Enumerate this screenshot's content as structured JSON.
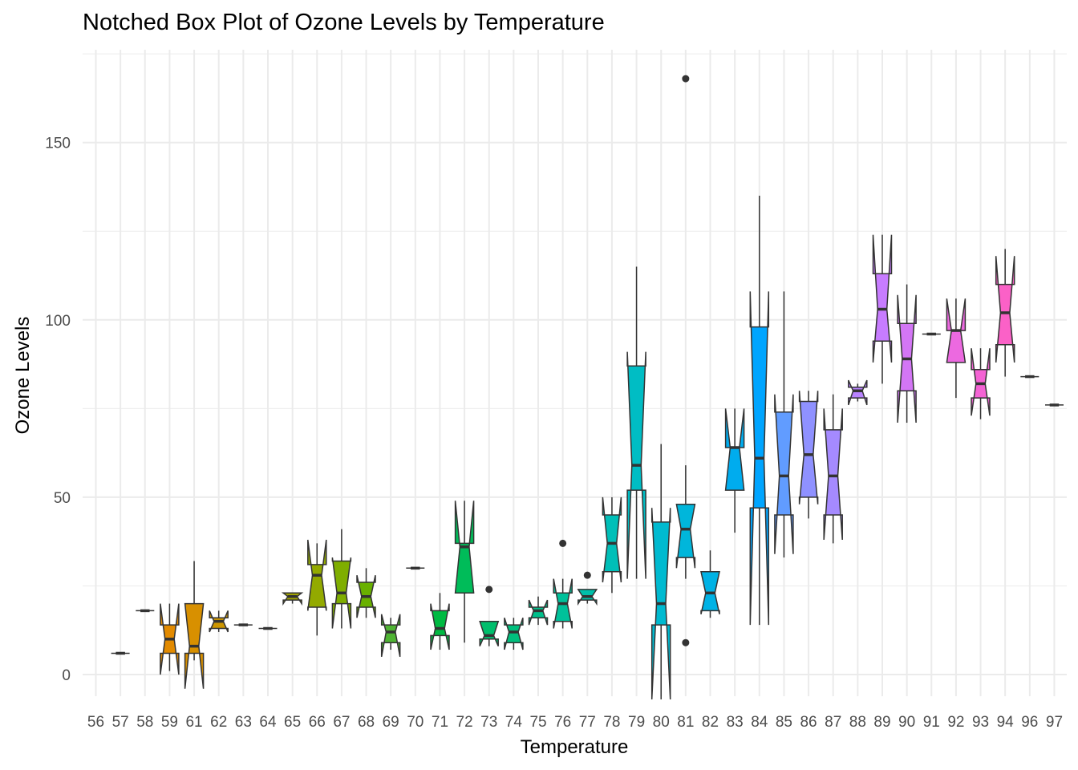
{
  "chart_data": {
    "type": "box",
    "title": "Notched Box Plot of Ozone Levels by Temperature",
    "xlabel": "Temperature",
    "ylabel": "Ozone Levels",
    "ylim": [
      -5,
      175
    ],
    "yticks": [
      0,
      50,
      100,
      150
    ],
    "grid": true,
    "legend": "none",
    "notched": true,
    "categories": [
      "56",
      "57",
      "58",
      "59",
      "61",
      "62",
      "63",
      "64",
      "65",
      "66",
      "67",
      "68",
      "69",
      "70",
      "71",
      "72",
      "73",
      "74",
      "75",
      "76",
      "77",
      "78",
      "79",
      "80",
      "81",
      "82",
      "83",
      "84",
      "85",
      "86",
      "87",
      "88",
      "89",
      "90",
      "91",
      "92",
      "93",
      "94",
      "96",
      "97"
    ],
    "colors": [
      "#F8766D",
      "#F27D53",
      "#EA842F",
      "#E28A00",
      "#D89000",
      "#CD9600",
      "#C09B00",
      "#B3A000",
      "#A3A500",
      "#93AA00",
      "#7FAE00",
      "#69B100",
      "#4FB433",
      "#00B81F",
      "#00BA42",
      "#00BC59",
      "#00BE6C",
      "#00BF7D",
      "#00C08B",
      "#00C19A",
      "#00C0AA",
      "#00BFB8",
      "#00BDC4",
      "#00BAD0",
      "#00B6DB",
      "#00B2E5",
      "#00ACEE",
      "#00A5FF",
      "#619CFF",
      "#8F91FF",
      "#A58AFF",
      "#B983FF",
      "#C77CFF",
      "#D376F5",
      "#E26EEA",
      "#EC69E0",
      "#F463D4",
      "#FB61C7",
      "#FF64B2",
      "#FF6A98"
    ],
    "boxes": [
      null,
      {
        "min": 6,
        "q1": 6,
        "median": 6,
        "q3": 6,
        "max": 6,
        "notch_low": 6,
        "notch_high": 6,
        "outliers": []
      },
      {
        "min": 18,
        "q1": 18,
        "median": 18,
        "q3": 18,
        "max": 18,
        "notch_low": 18,
        "notch_high": 18,
        "outliers": []
      },
      {
        "min": 1,
        "q1": 6,
        "median": 10,
        "q3": 14,
        "max": 20,
        "notch_low": 0,
        "notch_high": 20,
        "outliers": []
      },
      {
        "min": 4,
        "q1": 6,
        "median": 8,
        "q3": 20,
        "max": 32,
        "notch_low": -4,
        "notch_high": 20,
        "outliers": []
      },
      {
        "min": 12,
        "q1": 13,
        "median": 15,
        "q3": 16,
        "max": 18,
        "notch_low": 12,
        "notch_high": 18,
        "outliers": []
      },
      {
        "min": 14,
        "q1": 14,
        "median": 14,
        "q3": 14,
        "max": 14,
        "notch_low": 14,
        "notch_high": 14,
        "outliers": []
      },
      {
        "min": 13,
        "q1": 13,
        "median": 13,
        "q3": 13,
        "max": 13,
        "notch_low": 13,
        "notch_high": 13,
        "outliers": []
      },
      {
        "min": 20,
        "q1": 21,
        "median": 22,
        "q3": 23,
        "max": 23,
        "notch_low": 20,
        "notch_high": 23,
        "outliers": []
      },
      {
        "min": 11,
        "q1": 19,
        "median": 28,
        "q3": 31,
        "max": 37,
        "notch_low": 18,
        "notch_high": 38,
        "outliers": []
      },
      {
        "min": 13,
        "q1": 20,
        "median": 23,
        "q3": 32,
        "max": 41,
        "notch_low": 13,
        "notch_high": 33,
        "outliers": []
      },
      {
        "min": 16,
        "q1": 19,
        "median": 22,
        "q3": 26,
        "max": 30,
        "notch_low": 16,
        "notch_high": 28,
        "outliers": []
      },
      {
        "min": 7,
        "q1": 9,
        "median": 12,
        "q3": 14,
        "max": 16,
        "notch_low": 5,
        "notch_high": 17,
        "outliers": []
      },
      {
        "min": 30,
        "q1": 30,
        "median": 30,
        "q3": 30,
        "max": 30,
        "notch_low": 30,
        "notch_high": 30,
        "outliers": []
      },
      {
        "min": 7,
        "q1": 11,
        "median": 13,
        "q3": 18,
        "max": 23,
        "notch_low": 7,
        "notch_high": 20,
        "outliers": []
      },
      {
        "min": 9,
        "q1": 23,
        "median": 36,
        "q3": 37,
        "max": 49,
        "notch_low": 23,
        "notch_high": 49,
        "outliers": []
      },
      {
        "min": 8,
        "q1": 10,
        "median": 11,
        "q3": 15,
        "max": 15,
        "notch_low": 8,
        "notch_high": 15,
        "outliers": [
          24
        ]
      },
      {
        "min": 7,
        "q1": 9,
        "median": 12,
        "q3": 14,
        "max": 16,
        "notch_low": 7,
        "notch_high": 16,
        "outliers": []
      },
      {
        "min": 14,
        "q1": 16,
        "median": 18,
        "q3": 19,
        "max": 22,
        "notch_low": 14,
        "notch_high": 21,
        "outliers": []
      },
      {
        "min": 13,
        "q1": 15,
        "median": 20,
        "q3": 23,
        "max": 27,
        "notch_low": 13,
        "notch_high": 27,
        "outliers": [
          37
        ]
      },
      {
        "min": 20,
        "q1": 21,
        "median": 22,
        "q3": 24,
        "max": 24,
        "notch_low": 20,
        "notch_high": 24,
        "outliers": [
          28
        ]
      },
      {
        "min": 23,
        "q1": 29,
        "median": 37,
        "q3": 45,
        "max": 50,
        "notch_low": 26,
        "notch_high": 50,
        "outliers": []
      },
      {
        "min": 27,
        "q1": 52,
        "median": 59,
        "q3": 87,
        "max": 115,
        "notch_low": 27,
        "notch_high": 91,
        "outliers": []
      },
      {
        "min": -7,
        "q1": 14,
        "median": 20,
        "q3": 43,
        "max": 65,
        "notch_low": -7,
        "notch_high": 47,
        "outliers": []
      },
      {
        "min": 27,
        "q1": 33,
        "median": 41,
        "q3": 48,
        "max": 59,
        "notch_low": 30,
        "notch_high": 48,
        "outliers": [
          9,
          168
        ]
      },
      {
        "min": 16,
        "q1": 18,
        "median": 23,
        "q3": 29,
        "max": 35,
        "notch_low": 17,
        "notch_high": 29,
        "outliers": []
      },
      {
        "min": 40,
        "q1": 52,
        "median": 64,
        "q3": 64,
        "max": 75,
        "notch_low": 52,
        "notch_high": 75,
        "outliers": []
      },
      {
        "min": 14,
        "q1": 47,
        "median": 61,
        "q3": 98,
        "max": 135,
        "notch_low": 14,
        "notch_high": 108,
        "outliers": []
      },
      {
        "min": 33,
        "q1": 45,
        "median": 56,
        "q3": 74,
        "max": 108,
        "notch_low": 34,
        "notch_high": 79,
        "outliers": []
      },
      {
        "min": 44,
        "q1": 50,
        "median": 62,
        "q3": 77,
        "max": 80,
        "notch_low": 48,
        "notch_high": 80,
        "outliers": []
      },
      {
        "min": 37,
        "q1": 45,
        "median": 56,
        "q3": 69,
        "max": 79,
        "notch_low": 38,
        "notch_high": 75,
        "outliers": []
      },
      {
        "min": 77,
        "q1": 78,
        "median": 80,
        "q3": 81,
        "max": 82,
        "notch_low": 76,
        "notch_high": 83,
        "outliers": []
      },
      {
        "min": 82,
        "q1": 94,
        "median": 103,
        "q3": 113,
        "max": 124,
        "notch_low": 88,
        "notch_high": 124,
        "outliers": []
      },
      {
        "min": 71,
        "q1": 80,
        "median": 89,
        "q3": 99,
        "max": 110,
        "notch_low": 71,
        "notch_high": 107,
        "outliers": []
      },
      {
        "min": 96,
        "q1": 96,
        "median": 96,
        "q3": 96,
        "max": 96,
        "notch_low": 96,
        "notch_high": 96,
        "outliers": []
      },
      {
        "min": 78,
        "q1": 88,
        "median": 97,
        "q3": 97,
        "max": 106,
        "notch_low": 88,
        "notch_high": 106,
        "outliers": []
      },
      {
        "min": 72,
        "q1": 78,
        "median": 82,
        "q3": 86,
        "max": 92,
        "notch_low": 73,
        "notch_high": 92,
        "outliers": []
      },
      {
        "min": 84,
        "q1": 93,
        "median": 102,
        "q3": 110,
        "max": 120,
        "notch_low": 88,
        "notch_high": 118,
        "outliers": []
      },
      {
        "min": 84,
        "q1": 84,
        "median": 84,
        "q3": 84,
        "max": 84,
        "notch_low": 84,
        "notch_high": 84,
        "outliers": []
      },
      {
        "min": 76,
        "q1": 76,
        "median": 76,
        "q3": 76,
        "max": 76,
        "notch_low": 76,
        "notch_high": 76,
        "outliers": []
      }
    ]
  }
}
